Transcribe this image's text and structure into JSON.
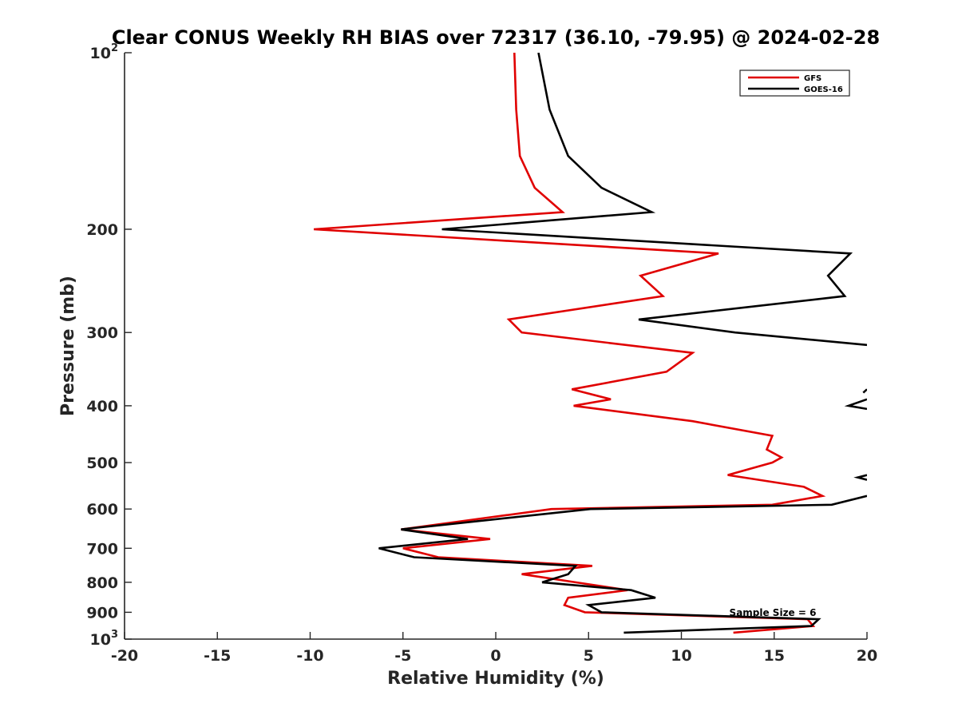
{
  "chart_data": {
    "type": "line",
    "title": "Clear CONUS Weekly RH BIAS over 72317 (36.10, -79.95) @ 2024-02-28",
    "xlabel": "Relative Humidity (%)",
    "ylabel": "Pressure (mb)",
    "xlim": [
      -20,
      20
    ],
    "ylim": [
      100,
      1000
    ],
    "y_scale": "log",
    "y_reversed": true,
    "grid": false,
    "legend_position": "top-right",
    "x_ticks": [
      {
        "value": -20,
        "label": "-20"
      },
      {
        "value": -15,
        "label": "-15"
      },
      {
        "value": -10,
        "label": "-10"
      },
      {
        "value": -5,
        "label": "-5"
      },
      {
        "value": 0,
        "label": "0"
      },
      {
        "value": 5,
        "label": "5"
      },
      {
        "value": 10,
        "label": "10"
      },
      {
        "value": 15,
        "label": "15"
      },
      {
        "value": 20,
        "label": "20"
      }
    ],
    "y_ticks": [
      {
        "value": 100,
        "label": "10",
        "sup": "2"
      },
      {
        "value": 200,
        "label": "200",
        "sup": ""
      },
      {
        "value": 300,
        "label": "300",
        "sup": ""
      },
      {
        "value": 400,
        "label": "400",
        "sup": ""
      },
      {
        "value": 500,
        "label": "500",
        "sup": ""
      },
      {
        "value": 600,
        "label": "600",
        "sup": ""
      },
      {
        "value": 700,
        "label": "700",
        "sup": ""
      },
      {
        "value": 800,
        "label": "800",
        "sup": ""
      },
      {
        "value": 900,
        "label": "900",
        "sup": ""
      },
      {
        "value": 1000,
        "label": "10",
        "sup": "3"
      }
    ],
    "series": [
      {
        "name": "GFS",
        "color": "#e00000",
        "points": [
          [
            1.0,
            100
          ],
          [
            1.1,
            125
          ],
          [
            1.3,
            150
          ],
          [
            2.1,
            170
          ],
          [
            3.6,
            187
          ],
          [
            -9.8,
            200
          ],
          [
            12.0,
            220
          ],
          [
            7.8,
            240
          ],
          [
            9.0,
            260
          ],
          [
            0.7,
            285
          ],
          [
            1.4,
            300
          ],
          [
            10.6,
            325
          ],
          [
            9.2,
            350
          ],
          [
            4.1,
            375
          ],
          [
            6.2,
            390
          ],
          [
            4.2,
            400
          ],
          [
            10.6,
            425
          ],
          [
            14.9,
            450
          ],
          [
            14.6,
            475
          ],
          [
            15.4,
            490
          ],
          [
            14.9,
            500
          ],
          [
            12.5,
            525
          ],
          [
            16.6,
            550
          ],
          [
            17.6,
            570
          ],
          [
            14.9,
            590
          ],
          [
            3.0,
            600
          ],
          [
            -5.1,
            650
          ],
          [
            -0.3,
            675
          ],
          [
            -5.0,
            700
          ],
          [
            -3.1,
            725
          ],
          [
            5.2,
            750
          ],
          [
            1.4,
            775
          ],
          [
            4.3,
            800
          ],
          [
            7.1,
            825
          ],
          [
            3.9,
            850
          ],
          [
            3.7,
            875
          ],
          [
            4.8,
            900
          ],
          [
            16.8,
            925
          ],
          [
            17.1,
            950
          ],
          [
            12.8,
            975
          ]
        ]
      },
      {
        "name": "GOES-16",
        "color": "#000000",
        "points": [
          [
            2.3,
            100
          ],
          [
            2.9,
            125
          ],
          [
            3.9,
            150
          ],
          [
            5.7,
            170
          ],
          [
            8.4,
            187
          ],
          [
            -2.9,
            200
          ],
          [
            19.1,
            220
          ],
          [
            17.9,
            240
          ],
          [
            18.8,
            260
          ],
          [
            7.7,
            285
          ],
          [
            12.9,
            300
          ],
          [
            20.0,
            315
          ],
          null,
          [
            20.0,
            375
          ],
          [
            19.8,
            380
          ],
          null,
          [
            20.0,
            390
          ],
          [
            19.0,
            400
          ],
          [
            20.0,
            405
          ],
          null,
          [
            20.0,
            525
          ],
          [
            19.5,
            530
          ],
          [
            20.0,
            535
          ],
          null,
          [
            20.0,
            570
          ],
          [
            18.1,
            590
          ],
          [
            5.1,
            600
          ],
          [
            -5.1,
            650
          ],
          [
            -1.5,
            675
          ],
          [
            -6.3,
            700
          ],
          [
            -4.4,
            725
          ],
          [
            4.3,
            750
          ],
          [
            3.9,
            775
          ],
          [
            2.5,
            800
          ],
          [
            7.3,
            825
          ],
          [
            8.6,
            850
          ],
          [
            5.0,
            875
          ],
          [
            5.7,
            900
          ],
          [
            17.4,
            925
          ],
          [
            17.0,
            950
          ],
          [
            6.9,
            975
          ]
        ]
      }
    ],
    "annotation": "Sample Size = 6"
  }
}
